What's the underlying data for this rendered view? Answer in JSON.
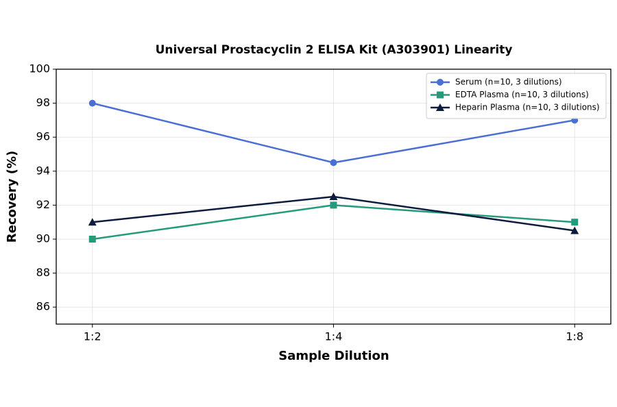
{
  "chart_data": {
    "type": "line",
    "title": "Universal Prostacyclin 2 ELISA Kit (A303901) Linearity",
    "x_label": "Sample Dilution",
    "y_label": "Recovery (%)",
    "categories": [
      "1:2",
      "1:4",
      "1:8"
    ],
    "series": [
      {
        "name": "Serum (n=10, 3 dilutions)",
        "color": "#4a6fd4",
        "marker": "circle",
        "values": [
          98,
          94.5,
          97
        ]
      },
      {
        "name": "EDTA Plasma (n=10, 3 dilutions)",
        "color": "#239b7a",
        "marker": "square",
        "values": [
          90,
          92,
          91
        ]
      },
      {
        "name": "Heparin Plasma (n=10, 3 dilutions)",
        "color": "#0d1b3e",
        "marker": "triangle",
        "values": [
          91,
          92.5,
          90.5
        ]
      }
    ],
    "ylim": [
      85,
      100
    ],
    "yticks": [
      86,
      88,
      90,
      92,
      94,
      96,
      98,
      100
    ],
    "grid": true,
    "legend": "upper-right"
  }
}
